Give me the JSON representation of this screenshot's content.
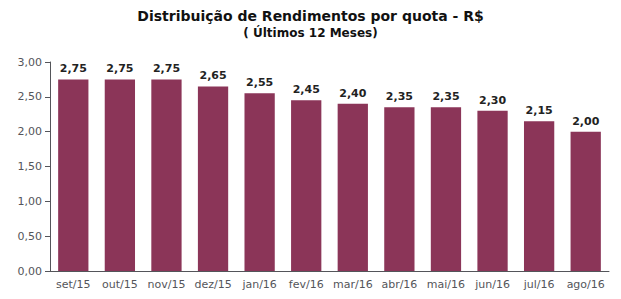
{
  "chart_data": {
    "type": "bar",
    "title": "Distribuição de Rendimentos por quota - R$",
    "subtitle": "( Últimos 12 Meses)",
    "categories": [
      "set/15",
      "out/15",
      "nov/15",
      "dez/15",
      "jan/16",
      "fev/16",
      "mar/16",
      "abr/16",
      "mai/16",
      "jun/16",
      "jul/16",
      "ago/16"
    ],
    "values": [
      2.75,
      2.75,
      2.75,
      2.65,
      2.55,
      2.45,
      2.4,
      2.35,
      2.35,
      2.3,
      2.15,
      2.0
    ],
    "value_labels": [
      "2,75",
      "2,75",
      "2,75",
      "2,65",
      "2,55",
      "2,45",
      "2,40",
      "2,35",
      "2,35",
      "2,30",
      "2,15",
      "2,00"
    ],
    "data_labels": true,
    "color": "#8B3558",
    "ylim": [
      0,
      3.0
    ],
    "yticks": [
      {
        "value": 0.0,
        "label": "0,00"
      },
      {
        "value": 0.5,
        "label": "0,50"
      },
      {
        "value": 1.0,
        "label": "1,00"
      },
      {
        "value": 1.5,
        "label": "1,50"
      },
      {
        "value": 2.0,
        "label": "2,00"
      },
      {
        "value": 2.5,
        "label": "2,50"
      },
      {
        "value": 3.0,
        "label": "3,00"
      }
    ],
    "grid": false
  }
}
